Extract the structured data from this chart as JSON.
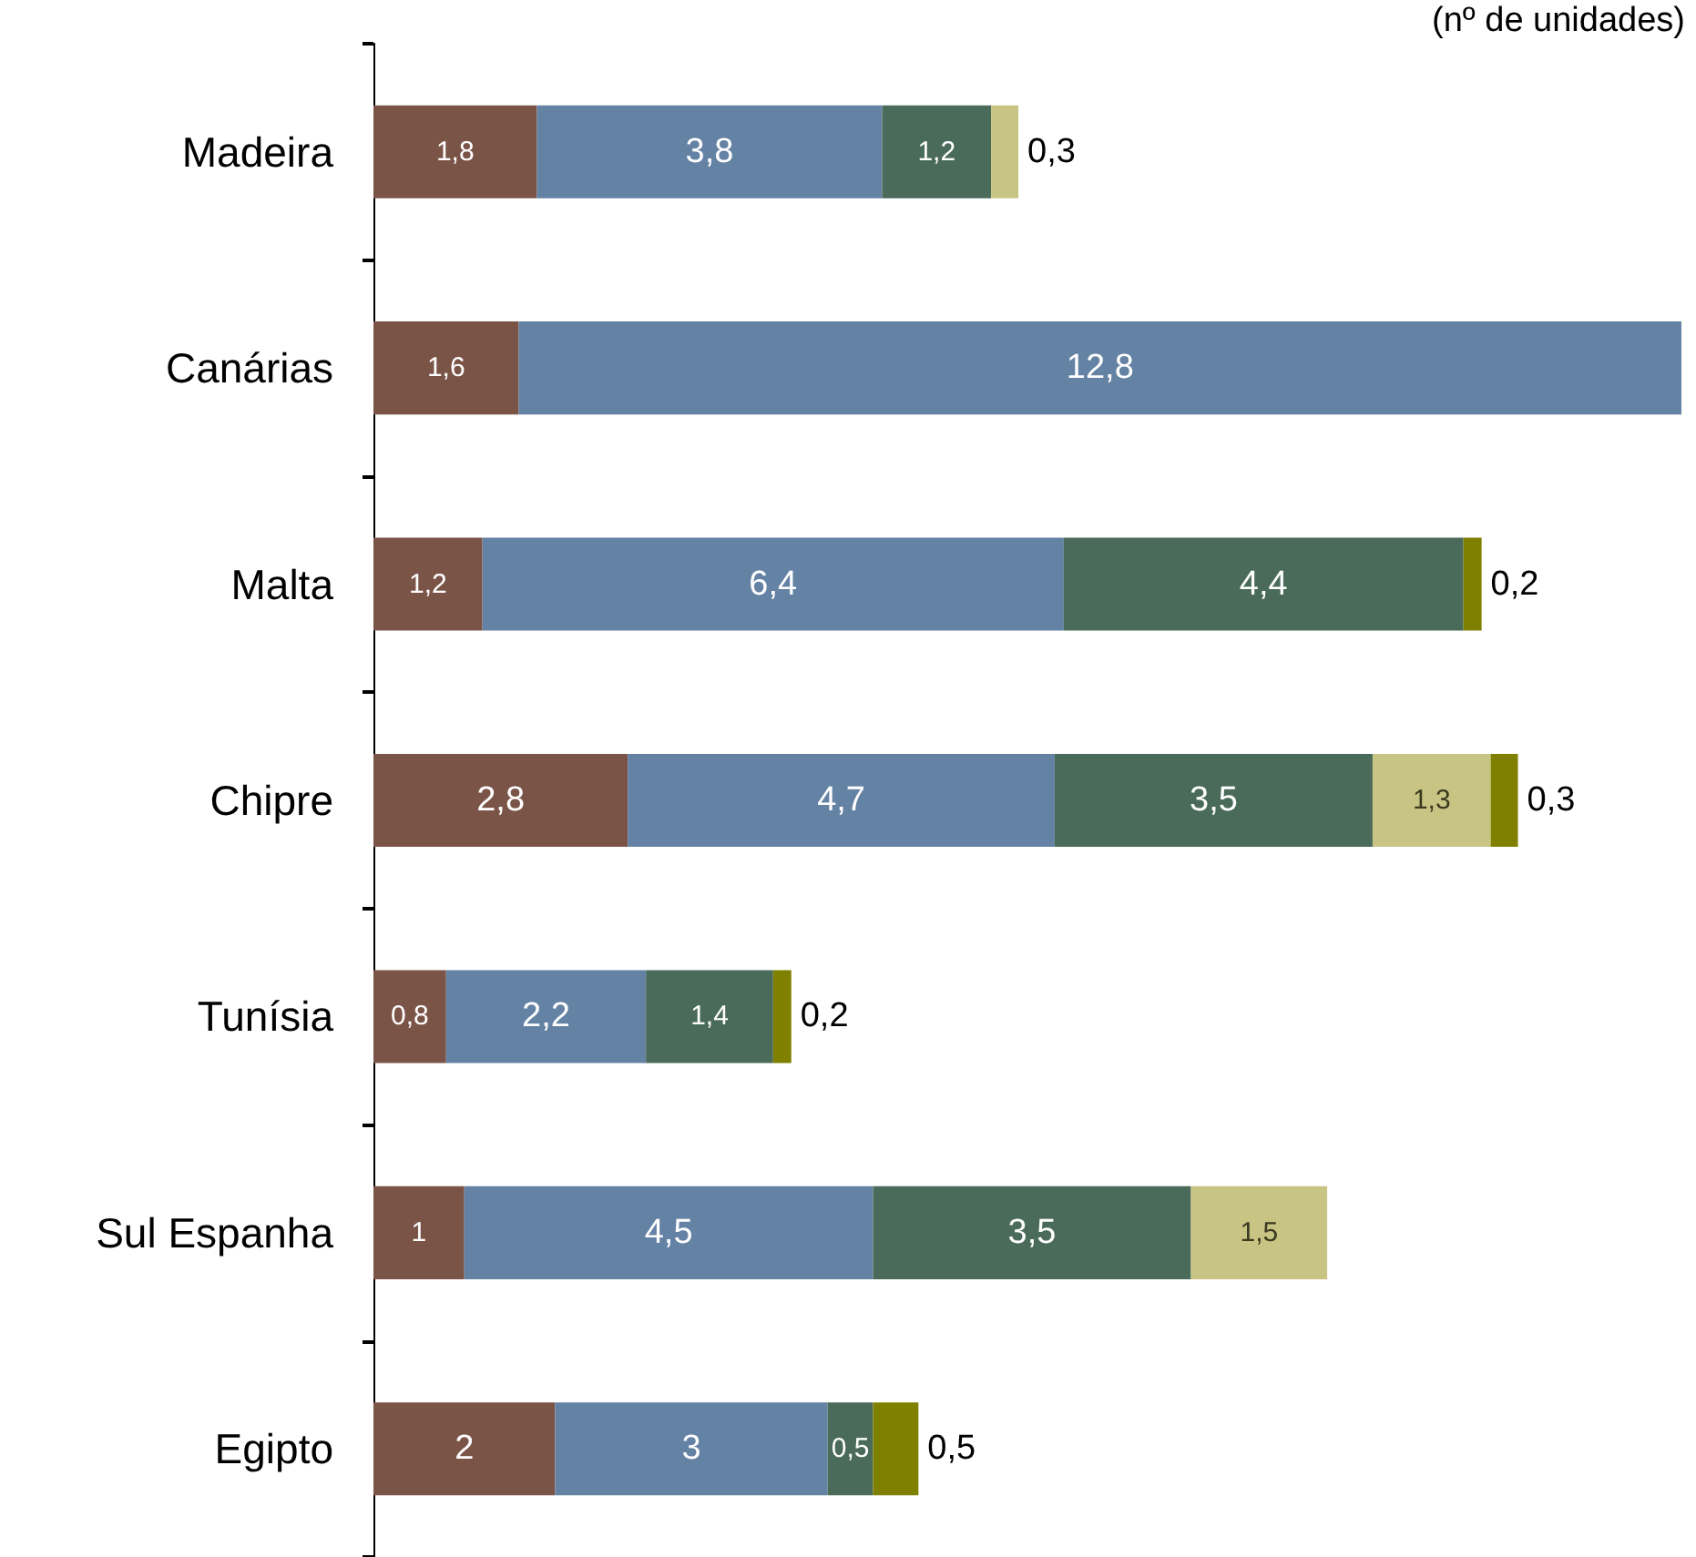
{
  "chart_data": {
    "type": "bar",
    "orientation": "horizontal",
    "stacked": true,
    "tick_labels": "y",
    "xlim": [
      0,
      14.4
    ],
    "annotations": [
      "(nº de unidades)"
    ],
    "categories": [
      "Madeira",
      "Canárias",
      "Malta",
      "Chipre",
      "Tunísia",
      "Sul Espanha",
      "Egipto"
    ],
    "series": [
      {
        "color": "#7b5448",
        "values": [
          1.8,
          1.6,
          1.2,
          2.8,
          0.8,
          1,
          2
        ],
        "value_labels": [
          "1,8",
          "1,6",
          "1,2",
          "2,8",
          "0,8",
          "1",
          "2"
        ]
      },
      {
        "color": "#6482a4",
        "values": [
          3.8,
          12.8,
          6.4,
          4.7,
          2.2,
          4.5,
          3
        ],
        "value_labels": [
          "3,8",
          "12,8",
          "6,4",
          "4,7",
          "2,2",
          "4,5",
          "3"
        ]
      },
      {
        "color": "#4a6b5a",
        "values": [
          1.2,
          null,
          4.4,
          3.5,
          1.4,
          3.5,
          0.5
        ],
        "value_labels": [
          "1,2",
          null,
          "4,4",
          "3,5",
          "1,4",
          "3,5",
          "0,5"
        ]
      },
      {
        "color": "#c8c484",
        "values": [
          0.3,
          null,
          null,
          1.3,
          null,
          1.5,
          null
        ],
        "value_labels": [
          "0,3",
          null,
          null,
          "1,3",
          null,
          "1,5",
          null
        ]
      },
      {
        "color": "#808000",
        "values": [
          null,
          null,
          0.2,
          0.3,
          0.2,
          null,
          0.5
        ],
        "value_labels": [
          null,
          null,
          "0,2",
          "0,3",
          "0,2",
          null,
          "0,5"
        ]
      }
    ]
  }
}
